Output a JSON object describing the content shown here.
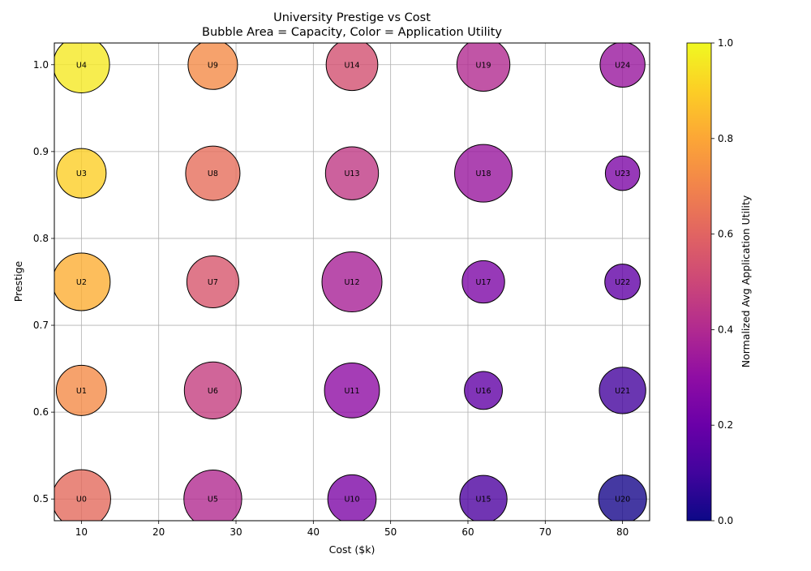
{
  "chart_data": {
    "type": "scatter",
    "title_line1": "University Prestige vs Cost",
    "title_line2": "Bubble Area = Capacity, Color = Application Utility",
    "xlabel": "Cost ($k)",
    "ylabel": "Prestige",
    "colorbar_label": "Normalized Avg Application Utility",
    "xlim": [
      6.5,
      83.5
    ],
    "ylim": [
      0.475,
      1.025
    ],
    "xticks": [
      10,
      20,
      30,
      40,
      50,
      60,
      70,
      80
    ],
    "yticks": [
      0.5,
      0.6,
      0.7,
      0.8,
      0.9,
      1.0
    ],
    "ytick_labels": [
      "0.5",
      "0.6",
      "0.7",
      "0.8",
      "0.9",
      "1.0"
    ],
    "colorbar_ticks": [
      0.0,
      0.2,
      0.4,
      0.6,
      0.8,
      1.0
    ],
    "colorbar_tick_labels": [
      "0.0",
      "0.2",
      "0.4",
      "0.6",
      "0.8",
      "1.0"
    ],
    "colormap": "plasma",
    "grid": true,
    "points": [
      {
        "label": "U0",
        "cost": 10,
        "prestige": 0.5,
        "capacity": 95,
        "utility": 0.62
      },
      {
        "label": "U1",
        "cost": 10,
        "prestige": 0.625,
        "capacity": 70,
        "utility": 0.72
      },
      {
        "label": "U2",
        "cost": 10,
        "prestige": 0.75,
        "capacity": 92,
        "utility": 0.82
      },
      {
        "label": "U3",
        "cost": 10,
        "prestige": 0.875,
        "capacity": 68,
        "utility": 0.9
      },
      {
        "label": "U4",
        "cost": 10,
        "prestige": 1.0,
        "capacity": 88,
        "utility": 0.96
      },
      {
        "label": "U5",
        "cost": 27,
        "prestige": 0.5,
        "capacity": 93,
        "utility": 0.4
      },
      {
        "label": "U6",
        "cost": 27,
        "prestige": 0.625,
        "capacity": 90,
        "utility": 0.47
      },
      {
        "label": "U7",
        "cost": 27,
        "prestige": 0.75,
        "capacity": 75,
        "utility": 0.55
      },
      {
        "label": "U8",
        "cost": 27,
        "prestige": 0.875,
        "capacity": 82,
        "utility": 0.63
      },
      {
        "label": "U9",
        "cost": 27,
        "prestige": 1.0,
        "capacity": 68,
        "utility": 0.72
      },
      {
        "label": "U10",
        "cost": 45,
        "prestige": 0.5,
        "capacity": 65,
        "utility": 0.25
      },
      {
        "label": "U11",
        "cost": 45,
        "prestige": 0.625,
        "capacity": 84,
        "utility": 0.3
      },
      {
        "label": "U12",
        "cost": 45,
        "prestige": 0.75,
        "capacity": 100,
        "utility": 0.37
      },
      {
        "label": "U13",
        "cost": 45,
        "prestige": 0.875,
        "capacity": 78,
        "utility": 0.45
      },
      {
        "label": "U14",
        "cost": 45,
        "prestige": 1.0,
        "capacity": 74,
        "utility": 0.53
      },
      {
        "label": "U15",
        "cost": 62,
        "prestige": 0.5,
        "capacity": 62,
        "utility": 0.13
      },
      {
        "label": "U16",
        "cost": 62,
        "prestige": 0.625,
        "capacity": 40,
        "utility": 0.18
      },
      {
        "label": "U17",
        "cost": 62,
        "prestige": 0.75,
        "capacity": 50,
        "utility": 0.25
      },
      {
        "label": "U18",
        "cost": 62,
        "prestige": 0.875,
        "capacity": 92,
        "utility": 0.33
      },
      {
        "label": "U19",
        "cost": 62,
        "prestige": 1.0,
        "capacity": 78,
        "utility": 0.4
      },
      {
        "label": "U20",
        "cost": 80,
        "prestige": 0.5,
        "capacity": 64,
        "utility": 0.02
      },
      {
        "label": "U21",
        "cost": 80,
        "prestige": 0.625,
        "capacity": 60,
        "utility": 0.11
      },
      {
        "label": "U22",
        "cost": 80,
        "prestige": 0.75,
        "capacity": 35,
        "utility": 0.18
      },
      {
        "label": "U23",
        "cost": 80,
        "prestige": 0.875,
        "capacity": 33,
        "utility": 0.25
      },
      {
        "label": "U24",
        "cost": 80,
        "prestige": 1.0,
        "capacity": 56,
        "utility": 0.33
      }
    ]
  }
}
